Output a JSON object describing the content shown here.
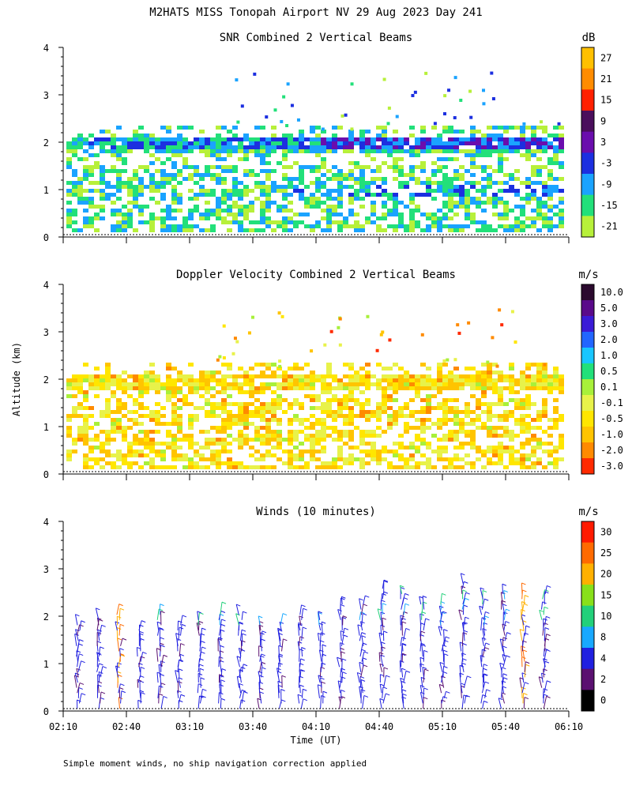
{
  "header": {
    "title": "M2HATS MISS Tonopah Airport NV  29 Aug 2023 Day 241"
  },
  "footer": {
    "note": "Simple moment winds, no ship navigation correction applied"
  },
  "axes": {
    "ylabel": "Altitude (km)",
    "xlabel": "Time (UT)",
    "yticks": [
      "0",
      "1",
      "2",
      "3",
      "4"
    ],
    "xticks": [
      "02:10",
      "02:40",
      "03:10",
      "03:40",
      "04:10",
      "04:40",
      "05:10",
      "05:40",
      "06:10"
    ]
  },
  "chart_data": [
    {
      "type": "heatmap",
      "title": "SNR Combined 2 Vertical Beams",
      "colorbar_unit": "dB",
      "colorbar_labels": [
        "27",
        "21",
        "15",
        "9",
        "3",
        "-3",
        "-9",
        "-15",
        "-21"
      ],
      "colorbar_colors": [
        "#ffc000",
        "#ff8c00",
        "#ff2000",
        "#4a0e5c",
        "#6a0dad",
        "#1c2fe0",
        "#1aa3ff",
        "#22e07a",
        "#b7f03a"
      ],
      "x_range": [
        "02:10",
        "06:10"
      ],
      "y_range_km": [
        0,
        4
      ],
      "features": [
        {
          "name": "elevated layer",
          "altitude_km": 2.0,
          "dominant_snr_db": -3
        },
        {
          "name": "lower layer",
          "altitude_km": 1.0,
          "dominant_snr_db": -15
        }
      ]
    },
    {
      "type": "heatmap",
      "title": "Doppler Velocity Combined 2 Vertical Beams",
      "colorbar_unit": "m/s",
      "colorbar_labels": [
        "10.0",
        "5.0",
        "3.0",
        "2.0",
        "1.0",
        "0.5",
        "0.1",
        "-0.1",
        "-0.5",
        "-1.0",
        "-2.0",
        "-3.0"
      ],
      "colorbar_colors": [
        "#2b0a2e",
        "#5a0a8a",
        "#3a1bd6",
        "#2266ff",
        "#18c6ff",
        "#22e07a",
        "#a8f03a",
        "#e8f24a",
        "#ffe600",
        "#ffc400",
        "#ff8a00",
        "#ff2a00"
      ],
      "x_range": [
        "02:10",
        "06:10"
      ],
      "y_range_km": [
        0,
        4
      ],
      "features": [
        {
          "name": "elevated layer",
          "altitude_km": 2.0,
          "dominant_velocity_ms": -0.5
        },
        {
          "name": "lower layer",
          "altitude_km": 1.1,
          "dominant_velocity_ms": -0.5
        }
      ]
    },
    {
      "type": "scatter",
      "title": "Winds (10 minutes)",
      "colorbar_unit": "m/s",
      "colorbar_labels": [
        "30",
        "25",
        "20",
        "15",
        "10",
        "8",
        "4",
        "2",
        "0"
      ],
      "colorbar_colors": [
        "#ff1a00",
        "#ff6a00",
        "#ffb000",
        "#88e01a",
        "#22d07a",
        "#18a8ff",
        "#2020e0",
        "#5a1070",
        "#000000"
      ],
      "x_range": [
        "02:10",
        "06:10"
      ],
      "y_range_km": [
        0,
        4
      ],
      "glyph": "wind barbs"
    }
  ]
}
